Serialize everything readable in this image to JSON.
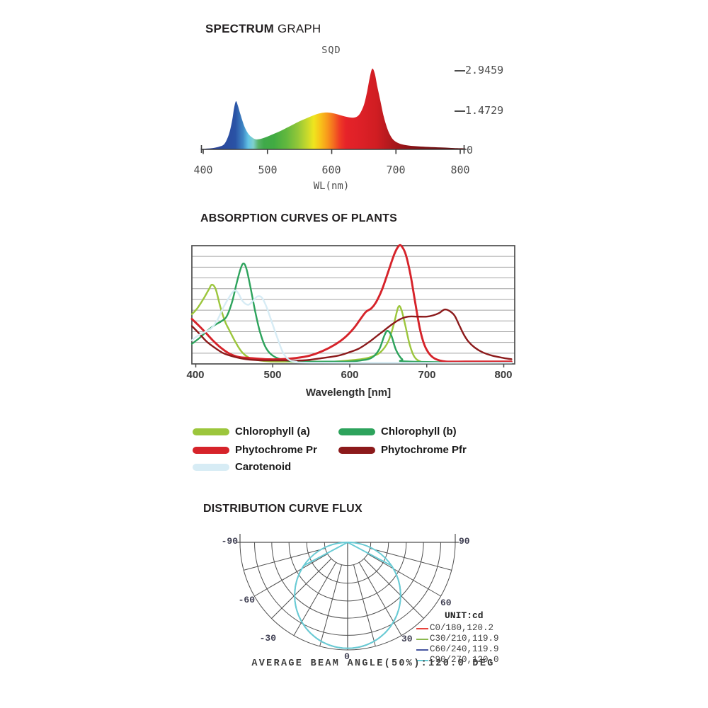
{
  "sections": {
    "spectrum": {
      "title_bold": "SPECTRUM",
      "title_regular": "GRAPH"
    },
    "absorption": {
      "title": "ABSORPTION CURVES OF PLANTS"
    },
    "distribution": {
      "title": "DISTRIBUTION CURVE FLUX"
    }
  },
  "chart_data": [
    {
      "type": "area",
      "title": "SQD",
      "xlabel": "WL(nm)",
      "ylabel": "",
      "x_ticks": [
        "400",
        "500",
        "600",
        "700",
        "800"
      ],
      "x_tick_values": [
        400,
        500,
        600,
        700,
        800
      ],
      "y_tick_labels": [
        "2.9459",
        "1.4729",
        "0"
      ],
      "y_tick_values": [
        2.9459,
        1.4729,
        0
      ],
      "xlim": [
        395,
        810
      ],
      "ylim": [
        0,
        2.9459
      ],
      "points": [
        [
          395,
          0.01
        ],
        [
          405,
          0.03
        ],
        [
          415,
          0.05
        ],
        [
          425,
          0.1
        ],
        [
          433,
          0.2
        ],
        [
          440,
          0.55
        ],
        [
          445,
          1.05
        ],
        [
          448,
          1.5
        ],
        [
          451,
          1.76
        ],
        [
          454,
          1.6
        ],
        [
          458,
          1.28
        ],
        [
          464,
          0.85
        ],
        [
          470,
          0.58
        ],
        [
          476,
          0.44
        ],
        [
          482,
          0.37
        ],
        [
          490,
          0.39
        ],
        [
          500,
          0.47
        ],
        [
          510,
          0.57
        ],
        [
          520,
          0.67
        ],
        [
          530,
          0.79
        ],
        [
          540,
          0.91
        ],
        [
          550,
          1.03
        ],
        [
          560,
          1.13
        ],
        [
          570,
          1.23
        ],
        [
          580,
          1.31
        ],
        [
          590,
          1.35
        ],
        [
          598,
          1.34
        ],
        [
          608,
          1.29
        ],
        [
          618,
          1.22
        ],
        [
          628,
          1.17
        ],
        [
          636,
          1.17
        ],
        [
          643,
          1.28
        ],
        [
          650,
          1.62
        ],
        [
          655,
          2.1
        ],
        [
          659,
          2.6
        ],
        [
          663,
          2.95
        ],
        [
          667,
          2.78
        ],
        [
          671,
          2.3
        ],
        [
          676,
          1.75
        ],
        [
          681,
          1.2
        ],
        [
          686,
          0.8
        ],
        [
          691,
          0.52
        ],
        [
          696,
          0.35
        ],
        [
          702,
          0.25
        ],
        [
          710,
          0.18
        ],
        [
          720,
          0.14
        ],
        [
          735,
          0.11
        ],
        [
          750,
          0.09
        ],
        [
          770,
          0.07
        ],
        [
          790,
          0.05
        ],
        [
          808,
          0.04
        ]
      ],
      "gradient_stops": [
        [
          400,
          "#2c3e94"
        ],
        [
          450,
          "#2a52a5"
        ],
        [
          462,
          "#3e86c4"
        ],
        [
          470,
          "#62c3e6"
        ],
        [
          478,
          "#7fd0cc"
        ],
        [
          486,
          "#57b266"
        ],
        [
          495,
          "#3fa94a"
        ],
        [
          510,
          "#41ab42"
        ],
        [
          530,
          "#63b83e"
        ],
        [
          548,
          "#95c838"
        ],
        [
          562,
          "#c8d92c"
        ],
        [
          572,
          "#efe51e"
        ],
        [
          582,
          "#f8c41a"
        ],
        [
          592,
          "#f89e1b"
        ],
        [
          602,
          "#f4711f"
        ],
        [
          612,
          "#ef3d25"
        ],
        [
          622,
          "#e62329"
        ],
        [
          645,
          "#dd2027"
        ],
        [
          670,
          "#d01d22"
        ],
        [
          695,
          "#ab181c"
        ],
        [
          730,
          "#841114"
        ],
        [
          800,
          "#5c0d0e"
        ]
      ]
    },
    {
      "type": "line",
      "title": "ABSORPTION CURVES OF PLANTS",
      "xlabel": "Wavelength [nm]",
      "ylabel": "",
      "x_ticks": [
        "400",
        "500",
        "600",
        "700",
        "800"
      ],
      "x_tick_values": [
        400,
        500,
        600,
        700,
        800
      ],
      "xlim": [
        395,
        814
      ],
      "ylim": [
        0,
        1
      ],
      "grid_rows": 11,
      "series": [
        {
          "name": "Chlorophyll (a)",
          "color": "#9cc63c",
          "points": [
            [
              395,
              0.42
            ],
            [
              402,
              0.47
            ],
            [
              410,
              0.55
            ],
            [
              417,
              0.63
            ],
            [
              421,
              0.67
            ],
            [
              426,
              0.63
            ],
            [
              432,
              0.48
            ],
            [
              438,
              0.36
            ],
            [
              444,
              0.28
            ],
            [
              452,
              0.18
            ],
            [
              460,
              0.1
            ],
            [
              470,
              0.05
            ],
            [
              482,
              0.03
            ],
            [
              500,
              0.02
            ],
            [
              540,
              0.02
            ],
            [
              580,
              0.02
            ],
            [
              600,
              0.03
            ],
            [
              615,
              0.04
            ],
            [
              628,
              0.06
            ],
            [
              640,
              0.1
            ],
            [
              650,
              0.19
            ],
            [
              657,
              0.33
            ],
            [
              663,
              0.48
            ],
            [
              667,
              0.46
            ],
            [
              672,
              0.33
            ],
            [
              678,
              0.16
            ],
            [
              684,
              0.06
            ],
            [
              692,
              0.02
            ],
            [
              705,
              0.01
            ],
            [
              810,
              0.01
            ]
          ]
        },
        {
          "name": "Chlorophyll (b)",
          "color": "#2da35c",
          "points": [
            [
              395,
              0.17
            ],
            [
              405,
              0.22
            ],
            [
              415,
              0.28
            ],
            [
              425,
              0.33
            ],
            [
              433,
              0.36
            ],
            [
              440,
              0.4
            ],
            [
              447,
              0.52
            ],
            [
              453,
              0.68
            ],
            [
              458,
              0.8
            ],
            [
              462,
              0.85
            ],
            [
              466,
              0.8
            ],
            [
              471,
              0.65
            ],
            [
              477,
              0.45
            ],
            [
              483,
              0.28
            ],
            [
              490,
              0.15
            ],
            [
              498,
              0.08
            ],
            [
              510,
              0.04
            ],
            [
              530,
              0.02
            ],
            [
              570,
              0.02
            ],
            [
              600,
              0.02
            ],
            [
              615,
              0.03
            ],
            [
              628,
              0.05
            ],
            [
              638,
              0.12
            ],
            [
              645,
              0.24
            ],
            [
              649,
              0.28
            ],
            [
              654,
              0.24
            ],
            [
              660,
              0.12
            ],
            [
              668,
              0.04
            ],
            [
              678,
              0.02
            ],
            [
              810,
              0.01
            ]
          ]
        },
        {
          "name": "Phytochrome Pr",
          "color": "#d6232a",
          "points": [
            [
              395,
              0.38
            ],
            [
              403,
              0.33
            ],
            [
              412,
              0.27
            ],
            [
              422,
              0.2
            ],
            [
              432,
              0.14
            ],
            [
              443,
              0.09
            ],
            [
              455,
              0.06
            ],
            [
              470,
              0.05
            ],
            [
              490,
              0.04
            ],
            [
              510,
              0.04
            ],
            [
              530,
              0.05
            ],
            [
              548,
              0.07
            ],
            [
              565,
              0.11
            ],
            [
              580,
              0.16
            ],
            [
              593,
              0.22
            ],
            [
              605,
              0.3
            ],
            [
              614,
              0.38
            ],
            [
              621,
              0.44
            ],
            [
              628,
              0.47
            ],
            [
              634,
              0.52
            ],
            [
              642,
              0.63
            ],
            [
              650,
              0.78
            ],
            [
              658,
              0.93
            ],
            [
              664,
              1.0
            ],
            [
              668,
              0.99
            ],
            [
              673,
              0.92
            ],
            [
              679,
              0.75
            ],
            [
              685,
              0.52
            ],
            [
              691,
              0.3
            ],
            [
              697,
              0.16
            ],
            [
              704,
              0.08
            ],
            [
              712,
              0.04
            ],
            [
              725,
              0.02
            ],
            [
              750,
              0.02
            ],
            [
              810,
              0.02
            ]
          ]
        },
        {
          "name": "Phytochrome Pfr",
          "color": "#8c1a1b",
          "points": [
            [
              395,
              0.32
            ],
            [
              404,
              0.26
            ],
            [
              414,
              0.19
            ],
            [
              424,
              0.14
            ],
            [
              436,
              0.09
            ],
            [
              450,
              0.06
            ],
            [
              465,
              0.04
            ],
            [
              485,
              0.03
            ],
            [
              510,
              0.03
            ],
            [
              540,
              0.03
            ],
            [
              565,
              0.05
            ],
            [
              585,
              0.07
            ],
            [
              600,
              0.1
            ],
            [
              612,
              0.13
            ],
            [
              624,
              0.18
            ],
            [
              636,
              0.24
            ],
            [
              646,
              0.29
            ],
            [
              656,
              0.34
            ],
            [
              666,
              0.38
            ],
            [
              676,
              0.4
            ],
            [
              688,
              0.4
            ],
            [
              700,
              0.4
            ],
            [
              708,
              0.41
            ],
            [
              716,
              0.43
            ],
            [
              723,
              0.46
            ],
            [
              729,
              0.45
            ],
            [
              736,
              0.41
            ],
            [
              742,
              0.33
            ],
            [
              748,
              0.25
            ],
            [
              754,
              0.19
            ],
            [
              762,
              0.14
            ],
            [
              772,
              0.1
            ],
            [
              785,
              0.07
            ],
            [
              800,
              0.05
            ],
            [
              810,
              0.04
            ]
          ]
        },
        {
          "name": "Carotenoid",
          "color": "#d7ecf5",
          "points": [
            [
              395,
              0.2
            ],
            [
              403,
              0.24
            ],
            [
              412,
              0.27
            ],
            [
              420,
              0.3
            ],
            [
              428,
              0.37
            ],
            [
              436,
              0.48
            ],
            [
              444,
              0.57
            ],
            [
              450,
              0.62
            ],
            [
              455,
              0.6
            ],
            [
              461,
              0.53
            ],
            [
              468,
              0.5
            ],
            [
              474,
              0.53
            ],
            [
              480,
              0.57
            ],
            [
              486,
              0.56
            ],
            [
              492,
              0.48
            ],
            [
              499,
              0.35
            ],
            [
              506,
              0.22
            ],
            [
              513,
              0.1
            ],
            [
              520,
              0.04
            ],
            [
              530,
              0.02
            ],
            [
              560,
              0.01
            ],
            [
              810,
              0.01
            ]
          ]
        }
      ]
    },
    {
      "type": "polar",
      "unit_label": "UNIT:cd",
      "angle_labels": [
        "-90",
        "-60",
        "-30",
        "0",
        "30",
        "60",
        "90"
      ],
      "angle_grid_step_deg": 15,
      "caption": "AVERAGE BEAM ANGLE(50%):120.0 DEG",
      "average_beam_angle_deg": 120.0,
      "distribution_model": "lambertian r(theta)=I*cos(theta)",
      "series": [
        {
          "plane": "C0/180",
          "max_cd": 120.2,
          "legend_label": "C0/180,120.2",
          "color": "#e8433c"
        },
        {
          "plane": "C30/210",
          "max_cd": 119.9,
          "legend_label": "C30/210,119.9",
          "color": "#8cb84e"
        },
        {
          "plane": "C60/240",
          "max_cd": 119.9,
          "legend_label": "C60/240,119.9",
          "color": "#4656a0"
        },
        {
          "plane": "C90/270",
          "max_cd": 120.0,
          "legend_label": "C90/270,120.0",
          "color": "#68cbd5"
        }
      ]
    }
  ]
}
